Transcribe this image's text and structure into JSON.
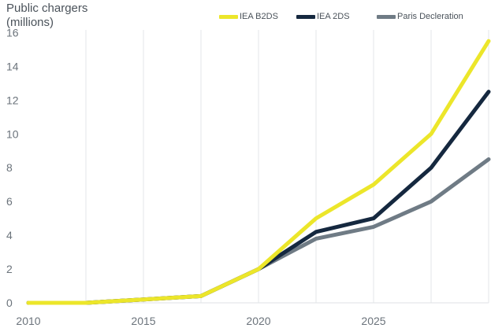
{
  "chart_data": {
    "type": "line",
    "ylabel": "Public chargers\n(millions)",
    "xlabel": "",
    "x": [
      2010,
      2012.5,
      2015,
      2017.5,
      2020,
      2022.5,
      2025,
      2027.5,
      2030
    ],
    "xlim": [
      2010,
      2030
    ],
    "ylim": [
      0,
      17
    ],
    "x_ticks": [
      2010,
      2015,
      2020,
      2025
    ],
    "y_ticks": [
      0,
      2,
      4,
      6,
      8,
      10,
      12,
      14,
      16
    ],
    "grid": "vertical",
    "legend_position": "top-right",
    "series": [
      {
        "name": "IEA B2DS",
        "color": "#ece62a",
        "values": [
          0,
          0,
          0.2,
          0.4,
          2,
          5,
          7,
          10,
          15.5
        ]
      },
      {
        "name": "IEA 2DS",
        "color": "#15283f",
        "values": [
          0,
          0,
          0.2,
          0.4,
          2,
          4.2,
          5,
          8,
          12.5
        ]
      },
      {
        "name": "Paris Decleration",
        "color": "#6f7b85",
        "values": [
          0,
          0,
          0.2,
          0.4,
          2,
          3.8,
          4.5,
          6,
          8.5
        ]
      }
    ]
  }
}
